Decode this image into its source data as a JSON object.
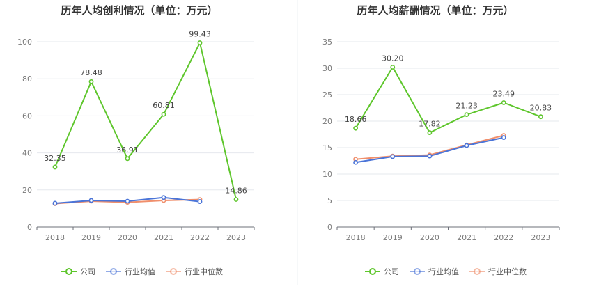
{
  "chart_data": [
    {
      "type": "line",
      "title": "历年人均创利情况（单位：万元）",
      "categories": [
        "2018",
        "2019",
        "2020",
        "2021",
        "2022",
        "2023"
      ],
      "ylim": [
        0,
        100
      ],
      "yticks": [
        0,
        20,
        40,
        60,
        80,
        100
      ],
      "grid": true,
      "legend_position": "bottom",
      "series": [
        {
          "name": "公司",
          "color": "#5ec62c",
          "values": [
            32.35,
            78.48,
            36.91,
            60.81,
            99.43,
            14.86
          ],
          "labels": [
            "32.35",
            "78.48",
            "36.91",
            "60.81",
            "99.43",
            "14.86"
          ]
        },
        {
          "name": "行业均值",
          "color": "#4a74d8",
          "values": [
            12.8,
            14.3,
            13.9,
            15.9,
            13.7,
            null
          ]
        },
        {
          "name": "行业中位数",
          "color": "#f08f6c",
          "values": [
            12.6,
            13.9,
            13.3,
            14.3,
            14.8,
            null
          ]
        }
      ]
    },
    {
      "type": "line",
      "title": "历年人均薪酬情况（单位：万元）",
      "categories": [
        "2018",
        "2019",
        "2020",
        "2021",
        "2022",
        "2023"
      ],
      "ylim": [
        0,
        35
      ],
      "yticks": [
        0,
        5,
        10,
        15,
        20,
        25,
        30,
        35
      ],
      "grid": true,
      "legend_position": "bottom",
      "series": [
        {
          "name": "公司",
          "color": "#5ec62c",
          "values": [
            18.66,
            30.2,
            17.82,
            21.23,
            23.49,
            20.83
          ],
          "labels": [
            "18.66",
            "30.20",
            "17.82",
            "21.23",
            "23.49",
            "20.83"
          ]
        },
        {
          "name": "行业均值",
          "color": "#4a74d8",
          "values": [
            12.2,
            13.3,
            13.4,
            15.4,
            16.9,
            null
          ]
        },
        {
          "name": "行业中位数",
          "color": "#f08f6c",
          "values": [
            12.8,
            13.4,
            13.6,
            15.5,
            17.3,
            null
          ]
        }
      ]
    }
  ]
}
